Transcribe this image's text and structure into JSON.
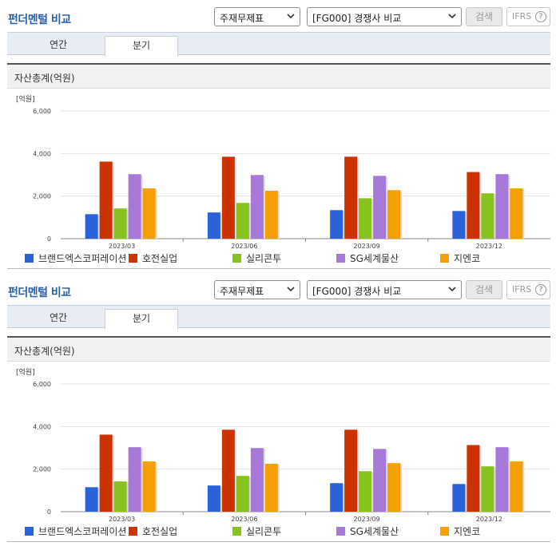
{
  "sections": [
    {
      "title": "펀더멘털 비교",
      "select_item": "주재무제표",
      "select_compare": "[FG000] 경쟁사 비교",
      "search_label": "검색",
      "ifrs_label": "IFRS",
      "ifrs_help": "?",
      "tabs": [
        {
          "label": "연간"
        },
        {
          "label": "분기"
        }
      ],
      "active_tab": "분기",
      "chart_title": "자산총계(억원)"
    },
    {
      "title": "펀더멘털 비교",
      "select_item": "주재무제표",
      "select_compare": "[FG000] 경쟁사 비교",
      "search_label": "검색",
      "ifrs_label": "IFRS",
      "ifrs_help": "?",
      "tabs": [
        {
          "label": "연간"
        },
        {
          "label": "분기"
        }
      ],
      "active_tab": "분기",
      "chart_title": "자산총계(억원)"
    }
  ],
  "icons": {
    "select_chevron": "chevron-down-icon",
    "help": "help-circle-icon"
  },
  "chart_data": {
    "type": "bar",
    "unit_label": "[억원]",
    "categories": [
      "2023/03",
      "2023/06",
      "2023/09",
      "2023/12"
    ],
    "yticks": [
      "0",
      "2,000",
      "4,000",
      "6,000"
    ],
    "ylim": [
      0,
      6000
    ],
    "grid": true,
    "legend_position": "bottom",
    "series": [
      {
        "name": "브랜드엑스코퍼레이션",
        "color": "#2962d9",
        "values": [
          1150,
          1230,
          1340,
          1300
        ]
      },
      {
        "name": "호전실업",
        "color": "#cc3300",
        "values": [
          3620,
          3850,
          3850,
          3130
        ]
      },
      {
        "name": "실리콘투",
        "color": "#88c21e",
        "values": [
          1420,
          1680,
          1900,
          2130
        ]
      },
      {
        "name": "SG세계물산",
        "color": "#a678d8",
        "values": [
          3030,
          2990,
          2950,
          3030
        ]
      },
      {
        "name": "지엔코",
        "color": "#f5a000",
        "values": [
          2360,
          2250,
          2280,
          2360
        ]
      }
    ]
  }
}
